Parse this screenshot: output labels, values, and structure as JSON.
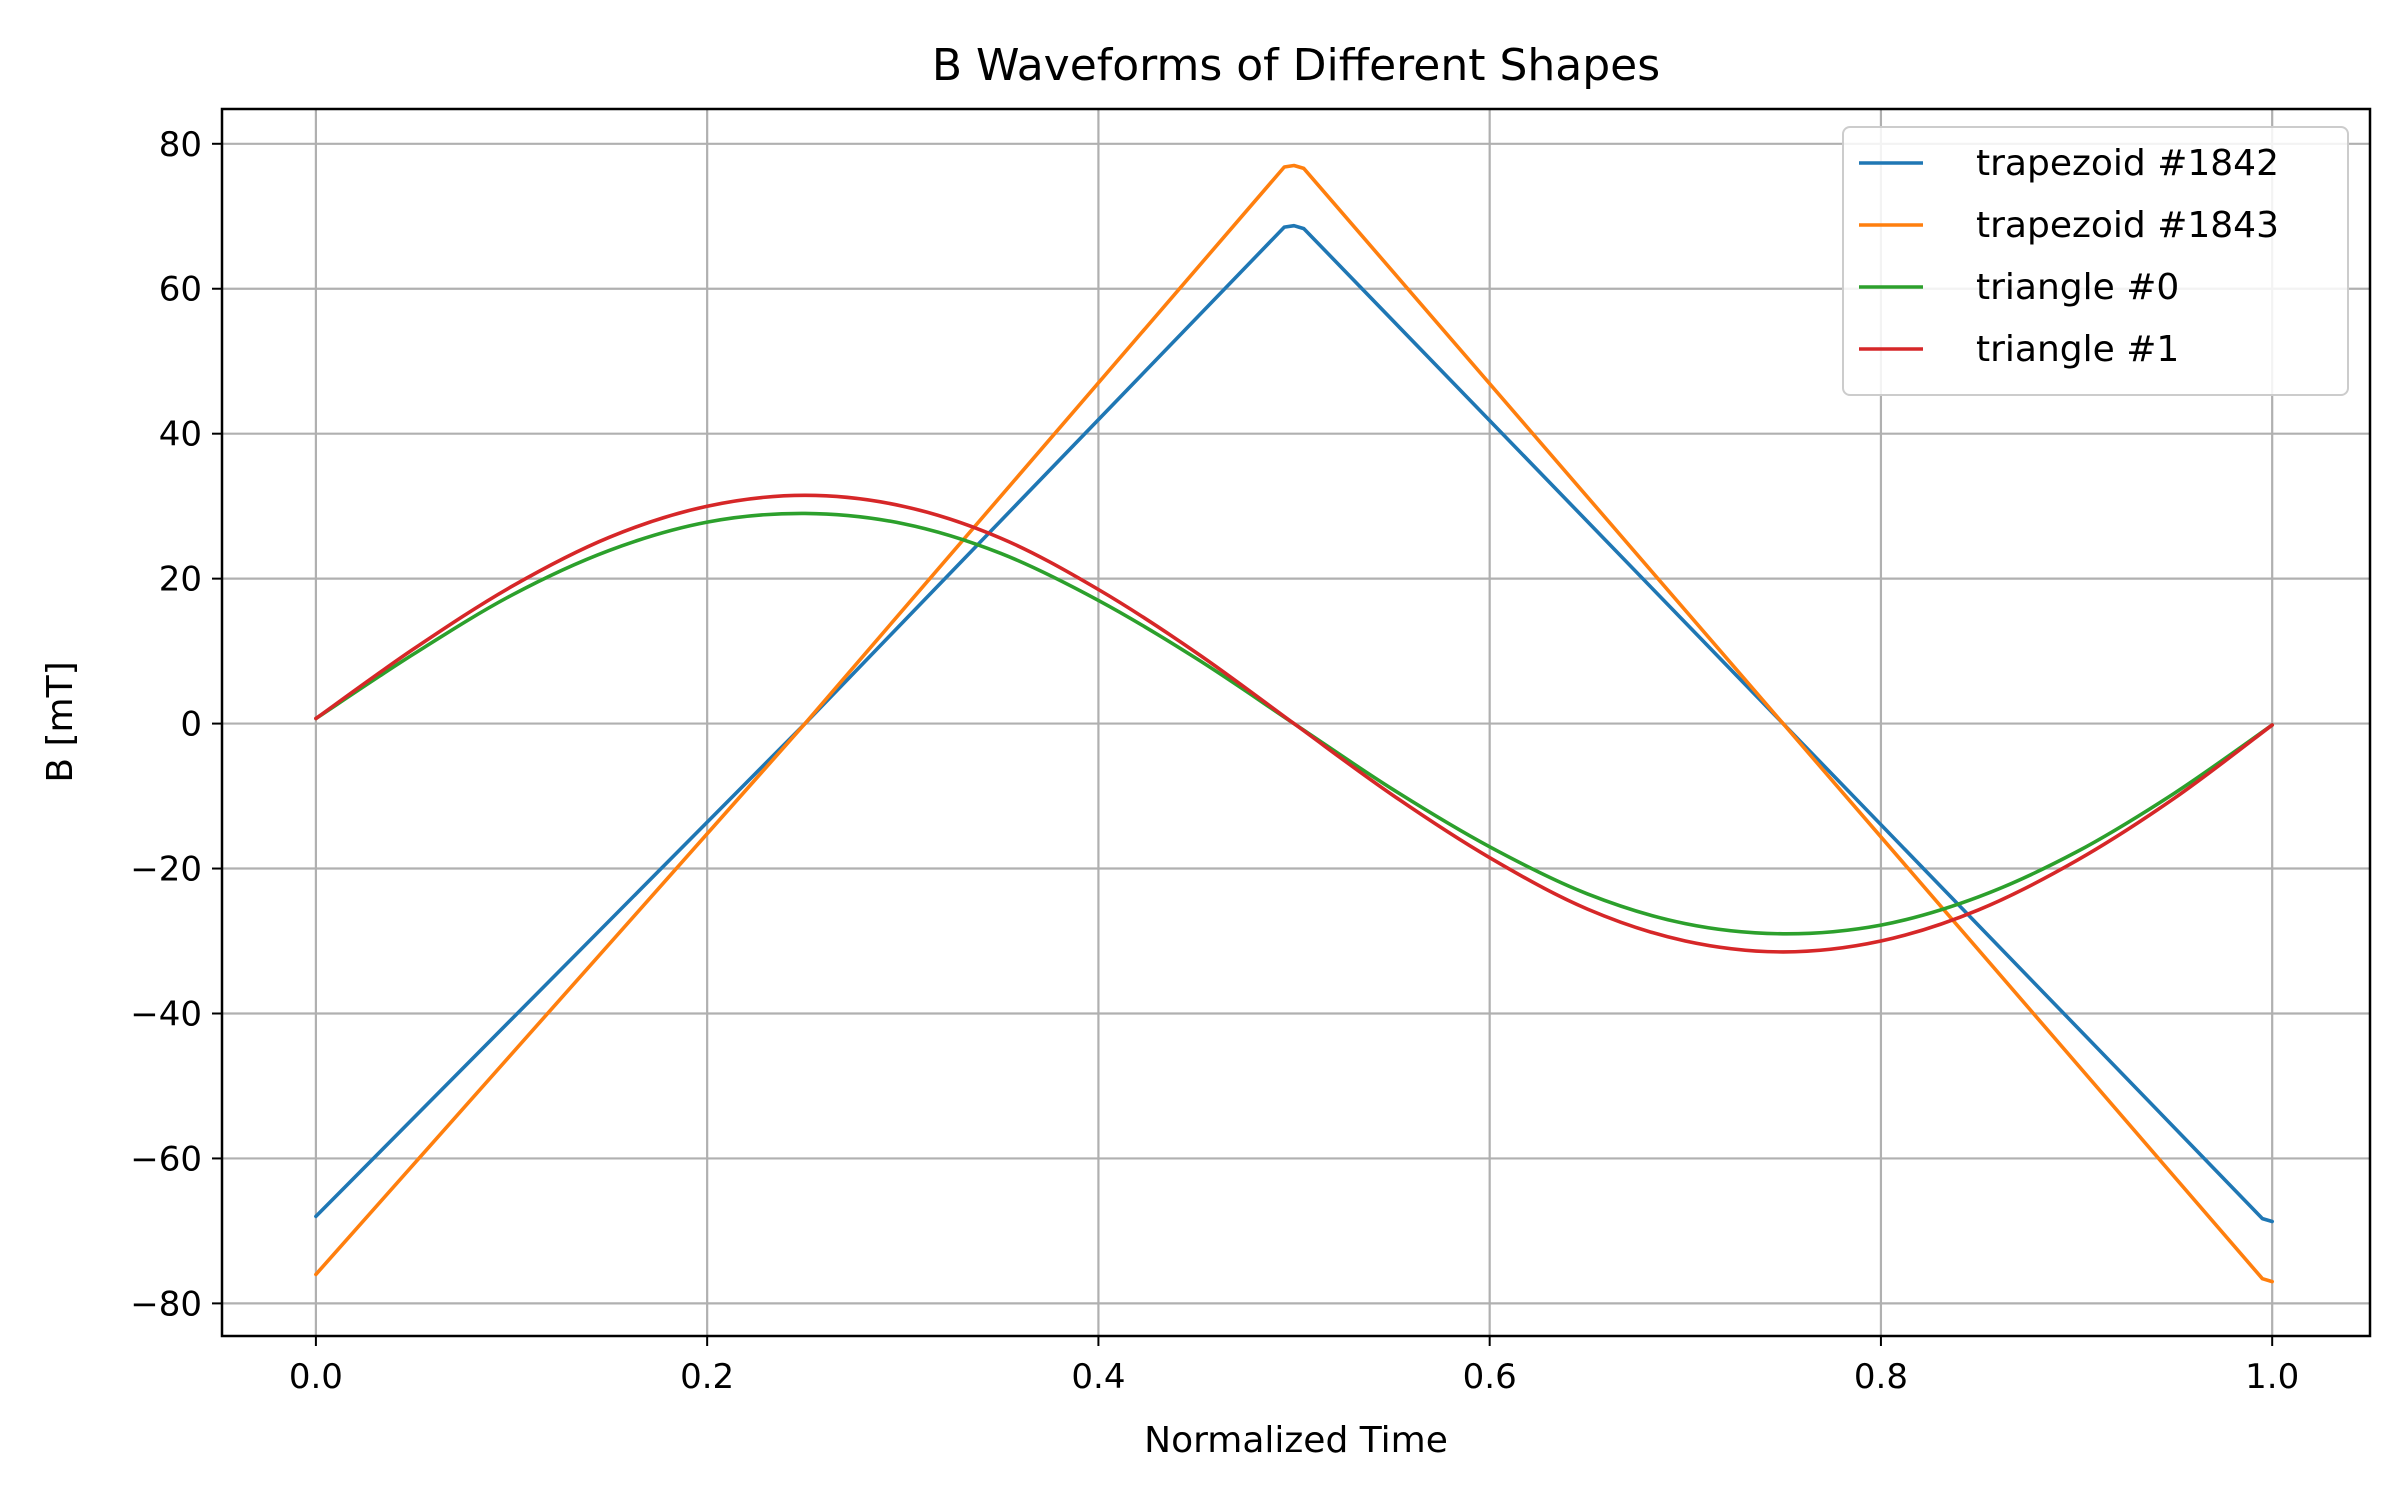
{
  "chart_data": {
    "type": "line",
    "title": "B Waveforms of Different Shapes",
    "xlabel": "Normalized Time",
    "ylabel": "B [mT]",
    "xlim": [
      -0.048,
      1.05
    ],
    "ylim": [
      -84.5,
      84.8
    ],
    "xticks": [
      0.0,
      0.2,
      0.4,
      0.6,
      0.8,
      1.0
    ],
    "xtick_labels": [
      "0.0",
      "0.2",
      "0.4",
      "0.6",
      "0.8",
      "1.0"
    ],
    "yticks": [
      -80,
      -60,
      -40,
      -20,
      0,
      20,
      40,
      60,
      80
    ],
    "ytick_labels": [
      "−80",
      "−60",
      "−40",
      "−20",
      "0",
      "20",
      "40",
      "60",
      "80"
    ],
    "grid": true,
    "legend_position": "top-right",
    "series": [
      {
        "name": "trapezoid #1842",
        "color": "#1f77b4",
        "x": [
          0.0,
          0.25,
          0.495,
          0.5,
          0.505,
          0.75,
          0.995,
          1.0
        ],
        "y": [
          -68,
          0,
          68.5,
          68.7,
          68.3,
          0,
          -68.3,
          -68.7
        ]
      },
      {
        "name": "trapezoid #1843",
        "color": "#ff7f0e",
        "x": [
          0.0,
          0.25,
          0.495,
          0.5,
          0.505,
          0.75,
          0.995,
          1.0
        ],
        "y": [
          -76,
          0,
          76.8,
          77,
          76.6,
          0,
          -76.6,
          -77
        ]
      },
      {
        "name": "triangle #0",
        "color": "#2ca02c",
        "x": [
          0.0,
          0.05,
          0.1,
          0.15,
          0.2,
          0.25,
          0.3,
          0.35,
          0.4,
          0.45,
          0.5,
          0.55,
          0.6,
          0.65,
          0.7,
          0.75,
          0.8,
          0.85,
          0.9,
          0.95,
          1.0
        ],
        "y": [
          0.7,
          9.6,
          17.7,
          23.9,
          27.8,
          29.0,
          27.6,
          23.5,
          17.0,
          9.0,
          0.0,
          -9.0,
          -17.0,
          -23.5,
          -27.6,
          -29.0,
          -27.8,
          -23.9,
          -17.7,
          -9.6,
          -0.2
        ]
      },
      {
        "name": "triangle #1",
        "color": "#d62728",
        "x": [
          0.0,
          0.05,
          0.1,
          0.15,
          0.2,
          0.25,
          0.3,
          0.35,
          0.4,
          0.45,
          0.5,
          0.55,
          0.6,
          0.65,
          0.7,
          0.75,
          0.8,
          0.85,
          0.9,
          0.95,
          1.0
        ],
        "y": [
          0.7,
          10.3,
          18.9,
          25.7,
          30.0,
          31.5,
          30.0,
          25.6,
          18.5,
          9.8,
          0.0,
          -9.8,
          -18.5,
          -25.6,
          -30.0,
          -31.5,
          -30.0,
          -25.7,
          -18.9,
          -10.3,
          -0.2
        ]
      }
    ]
  }
}
